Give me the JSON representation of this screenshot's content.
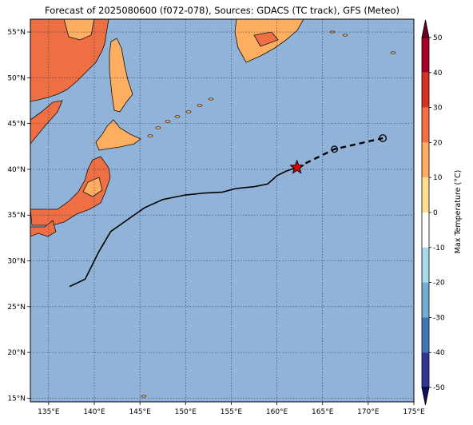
{
  "map": {
    "title": "Forecast of 2025080600 (f072-078), Sources: GDACS (TC track), GFS (Meteo)",
    "extent": {
      "lon_min": 133,
      "lon_max": 175,
      "lat_min": 14.6,
      "lat_max": 56.4
    },
    "lon_ticks": [
      {
        "value": 135,
        "label": "135°E"
      },
      {
        "value": 140,
        "label": "140°E"
      },
      {
        "value": 145,
        "label": "145°E"
      },
      {
        "value": 150,
        "label": "150°E"
      },
      {
        "value": 155,
        "label": "155°E"
      },
      {
        "value": 160,
        "label": "160°E"
      },
      {
        "value": 165,
        "label": "165°E"
      },
      {
        "value": 170,
        "label": "170°E"
      },
      {
        "value": 175,
        "label": "175°E"
      }
    ],
    "lat_ticks": [
      {
        "value": 15,
        "label": "15°N"
      },
      {
        "value": 20,
        "label": "20°N"
      },
      {
        "value": 25,
        "label": "25°N"
      },
      {
        "value": 30,
        "label": "30°N"
      },
      {
        "value": 35,
        "label": "35°N"
      },
      {
        "value": 40,
        "label": "40°N"
      },
      {
        "value": 45,
        "label": "45°N"
      },
      {
        "value": 50,
        "label": "50°N"
      },
      {
        "value": 55,
        "label": "55°N"
      }
    ],
    "ocean_color": "#92b3d8",
    "gridlines": true
  },
  "track": {
    "past_color": "#000000",
    "past": [
      [
        137.3,
        27.2
      ],
      [
        139.0,
        28.0
      ],
      [
        140.5,
        31.0
      ],
      [
        141.8,
        33.2
      ],
      [
        143.5,
        34.4
      ],
      [
        145.5,
        35.8
      ],
      [
        147.5,
        36.7
      ],
      [
        150.0,
        37.2
      ],
      [
        152.0,
        37.4
      ],
      [
        154.0,
        37.5
      ],
      [
        155.5,
        37.9
      ],
      [
        157.5,
        38.1
      ],
      [
        159.0,
        38.4
      ],
      [
        160.0,
        39.3
      ],
      [
        161.0,
        39.8
      ],
      [
        162.2,
        40.2
      ]
    ],
    "current_position": [
      162.2,
      40.2
    ],
    "current_marker_color": "#e00000",
    "forecast": [
      [
        162.2,
        40.2
      ],
      [
        166.3,
        42.2
      ],
      [
        171.6,
        43.4
      ]
    ],
    "forecast_points": [
      [
        166.3,
        42.2
      ],
      [
        171.6,
        43.4
      ]
    ]
  },
  "colorbar": {
    "label": "Max Temperature (°C)",
    "ticks": [
      50,
      40,
      30,
      20,
      10,
      0,
      -10,
      -20,
      -30,
      -40,
      -50
    ],
    "bands": [
      {
        "from": 40,
        "to": 50,
        "color": "#a50026"
      },
      {
        "from": 30,
        "to": 40,
        "color": "#d73027"
      },
      {
        "from": 20,
        "to": 30,
        "color": "#f46d43"
      },
      {
        "from": 10,
        "to": 20,
        "color": "#fdae61"
      },
      {
        "from": 0,
        "to": 10,
        "color": "#fee090"
      },
      {
        "from": -10,
        "to": 0,
        "color": "#ffffff"
      },
      {
        "from": -20,
        "to": -10,
        "color": "#abd9e9"
      },
      {
        "from": -30,
        "to": -20,
        "color": "#74add1"
      },
      {
        "from": -40,
        "to": -30,
        "color": "#4575b4"
      },
      {
        "from": -50,
        "to": -40,
        "color": "#313695"
      }
    ],
    "extend_max_color": "#67001f",
    "extend_min_color": "#0c1060"
  },
  "land": {
    "hot_color": "#ee6f44",
    "warm_color": "#fdae61",
    "outline_color": "#111111",
    "hot_temp": 25,
    "warm_temp": 15
  }
}
